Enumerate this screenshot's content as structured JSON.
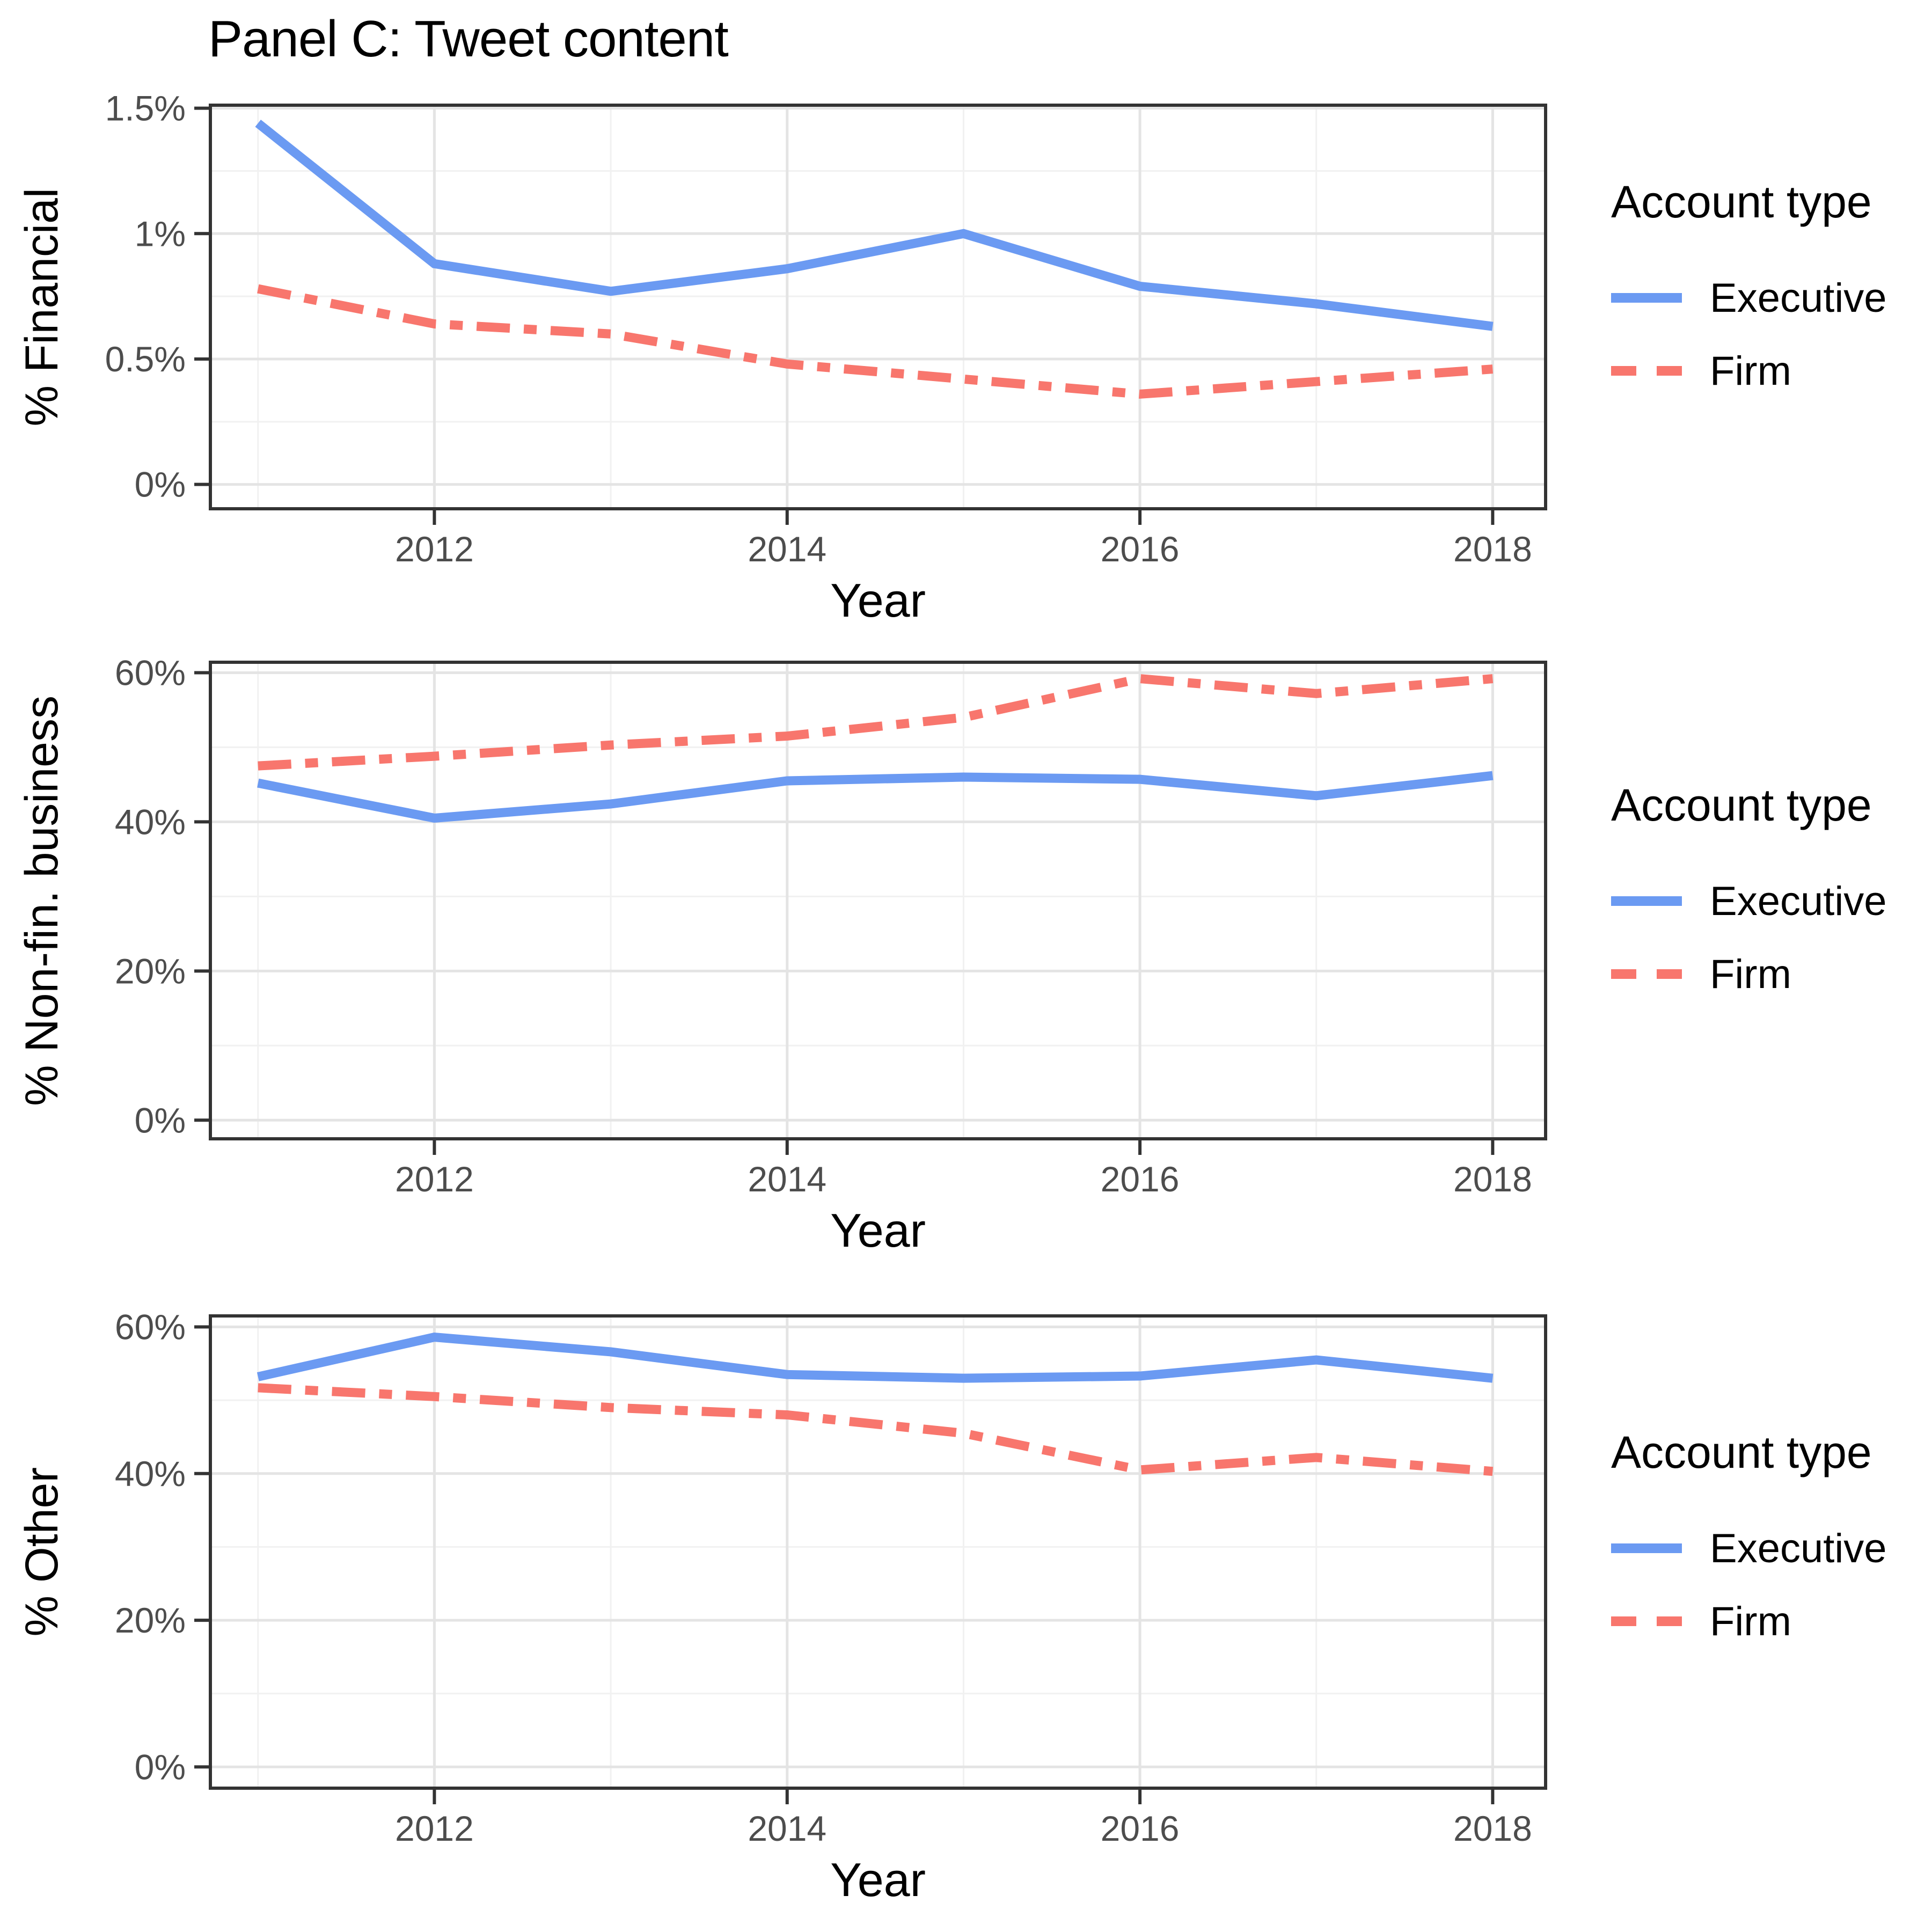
{
  "title": "Panel C: Tweet content",
  "legend": {
    "title": "Account type",
    "items": [
      {
        "label": "Executive",
        "color": "#6B9AF2",
        "line_style": "solid"
      },
      {
        "label": "Firm",
        "color": "#F8766D",
        "line_style": "dashed"
      }
    ]
  },
  "style": {
    "background": "#FFFFFF",
    "grid_major": "#E4E4E4",
    "grid_minor": "#F1F1F1",
    "panel_border": "#333333",
    "tick_label_color": "#4D4D4D"
  },
  "chart_data": [
    {
      "id": "financial",
      "type": "line",
      "title": "Panel C: Tweet content",
      "ylabel": "% Financial",
      "xlabel": "Year",
      "x": [
        2011,
        2012,
        2013,
        2014,
        2015,
        2016,
        2017,
        2018
      ],
      "series": [
        {
          "name": "Executive",
          "style": "solid",
          "color": "#6B9AF2",
          "values": [
            1.44,
            0.88,
            0.77,
            0.86,
            1.0,
            0.79,
            0.72,
            0.63
          ]
        },
        {
          "name": "Firm",
          "style": "dashed",
          "color": "#F8766D",
          "values": [
            0.78,
            0.64,
            0.6,
            0.48,
            0.42,
            0.36,
            0.41,
            0.46
          ]
        }
      ],
      "y_ticks": {
        "major": [
          0,
          0.5,
          1,
          1.5
        ],
        "labels": [
          "0%",
          "0.5%",
          "1%",
          "1.5%"
        ],
        "minor": [
          0.25,
          0.75,
          1.25
        ]
      },
      "x_ticks": {
        "major": [
          2012,
          2014,
          2016,
          2018
        ],
        "labels": [
          "2012",
          "2014",
          "2016",
          "2018"
        ],
        "minor": [
          2011,
          2013,
          2015,
          2017
        ]
      },
      "xlim": [
        2010.73,
        2018.3
      ],
      "ylim": [
        -0.097,
        1.512
      ],
      "grid": true,
      "legend_position": "right"
    },
    {
      "id": "nonfin-business",
      "type": "line",
      "ylabel": "% Non-fin. business",
      "xlabel": "Year",
      "x": [
        2011,
        2012,
        2013,
        2014,
        2015,
        2016,
        2017,
        2018
      ],
      "series": [
        {
          "name": "Executive",
          "style": "solid",
          "color": "#6B9AF2",
          "values": [
            45.2,
            40.5,
            42.4,
            45.5,
            46.0,
            45.7,
            43.5,
            46.2
          ]
        },
        {
          "name": "Firm",
          "style": "dashed",
          "color": "#F8766D",
          "values": [
            47.5,
            48.8,
            50.3,
            51.5,
            54.0,
            59.2,
            57.2,
            59.2
          ]
        }
      ],
      "y_ticks": {
        "major": [
          0,
          20,
          40,
          60
        ],
        "labels": [
          "0%",
          "20%",
          "40%",
          "60%"
        ],
        "minor": [
          10,
          30,
          50
        ]
      },
      "x_ticks": {
        "major": [
          2012,
          2014,
          2016,
          2018
        ],
        "labels": [
          "2012",
          "2014",
          "2016",
          "2018"
        ],
        "minor": [
          2011,
          2013,
          2015,
          2017
        ]
      },
      "xlim": [
        2010.73,
        2018.3
      ],
      "ylim": [
        -2.5,
        61.4
      ],
      "grid": true,
      "legend_position": "right"
    },
    {
      "id": "other",
      "type": "line",
      "ylabel": "% Other",
      "xlabel": "Year",
      "x": [
        2011,
        2012,
        2013,
        2014,
        2015,
        2016,
        2017,
        2018
      ],
      "series": [
        {
          "name": "Executive",
          "style": "solid",
          "color": "#6B9AF2",
          "values": [
            53.2,
            58.6,
            56.6,
            53.5,
            53.0,
            53.3,
            55.5,
            53.0
          ]
        },
        {
          "name": "Firm",
          "style": "dashed",
          "color": "#F8766D",
          "values": [
            51.7,
            50.5,
            49.0,
            48.0,
            45.5,
            40.5,
            42.2,
            40.3
          ]
        }
      ],
      "y_ticks": {
        "major": [
          0,
          20,
          40,
          60
        ],
        "labels": [
          "0%",
          "20%",
          "40%",
          "60%"
        ],
        "minor": [
          10,
          30,
          50
        ]
      },
      "x_ticks": {
        "major": [
          2012,
          2014,
          2016,
          2018
        ],
        "labels": [
          "2012",
          "2014",
          "2016",
          "2018"
        ],
        "minor": [
          2011,
          2013,
          2015,
          2017
        ]
      },
      "xlim": [
        2010.73,
        2018.3
      ],
      "ylim": [
        -2.9,
        61.5
      ],
      "grid": true,
      "legend_position": "right"
    }
  ]
}
